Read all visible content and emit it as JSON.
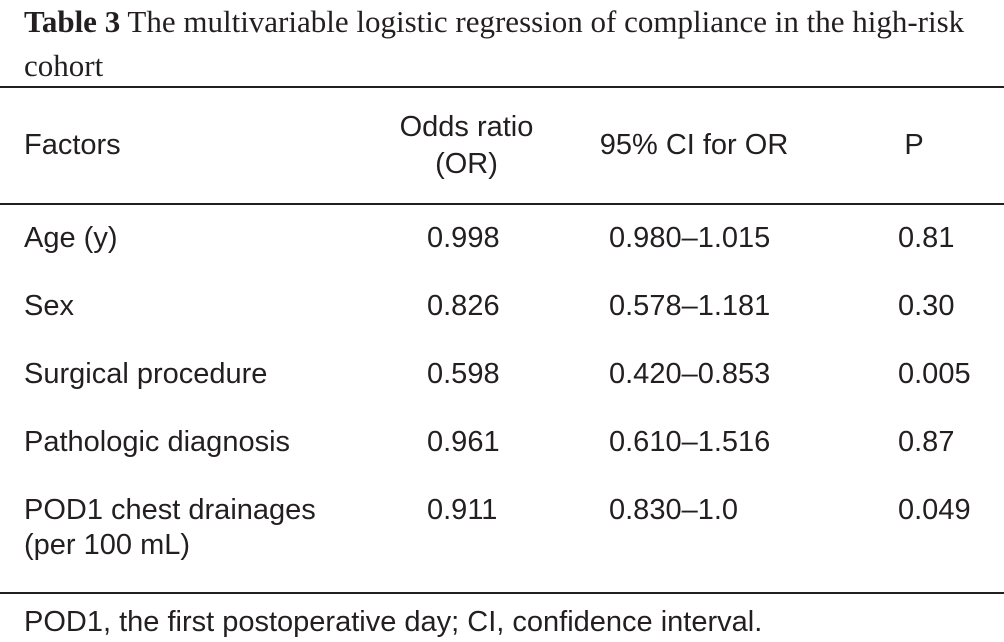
{
  "caption": {
    "label": "Table 3",
    "text": "The multivariable logistic regression of compliance in the high-risk cohort"
  },
  "table": {
    "headers": {
      "factors": "Factors",
      "odds_ratio_line1": "Odds ratio",
      "odds_ratio_line2": "(OR)",
      "ci": "95% CI for OR",
      "p": "P"
    },
    "rows": [
      {
        "factor": "Age (y)",
        "factor_line2": "",
        "or": "0.998",
        "ci": "0.980–1.015",
        "p": "0.81"
      },
      {
        "factor": "Sex",
        "factor_line2": "",
        "or": "0.826",
        "ci": "0.578–1.181",
        "p": "0.30"
      },
      {
        "factor": "Surgical procedure",
        "factor_line2": "",
        "or": "0.598",
        "ci": "0.420–0.853",
        "p": "0.005"
      },
      {
        "factor": "Pathologic diagnosis",
        "factor_line2": "",
        "or": "0.961",
        "ci": "0.610–1.516",
        "p": "0.87"
      },
      {
        "factor": "POD1 chest drainages",
        "factor_line2": "(per 100 mL)",
        "or": "0.911",
        "ci": "0.830–1.0",
        "p": "0.049"
      }
    ]
  },
  "footnote": "POD1, the first postoperative day; CI, confidence interval."
}
